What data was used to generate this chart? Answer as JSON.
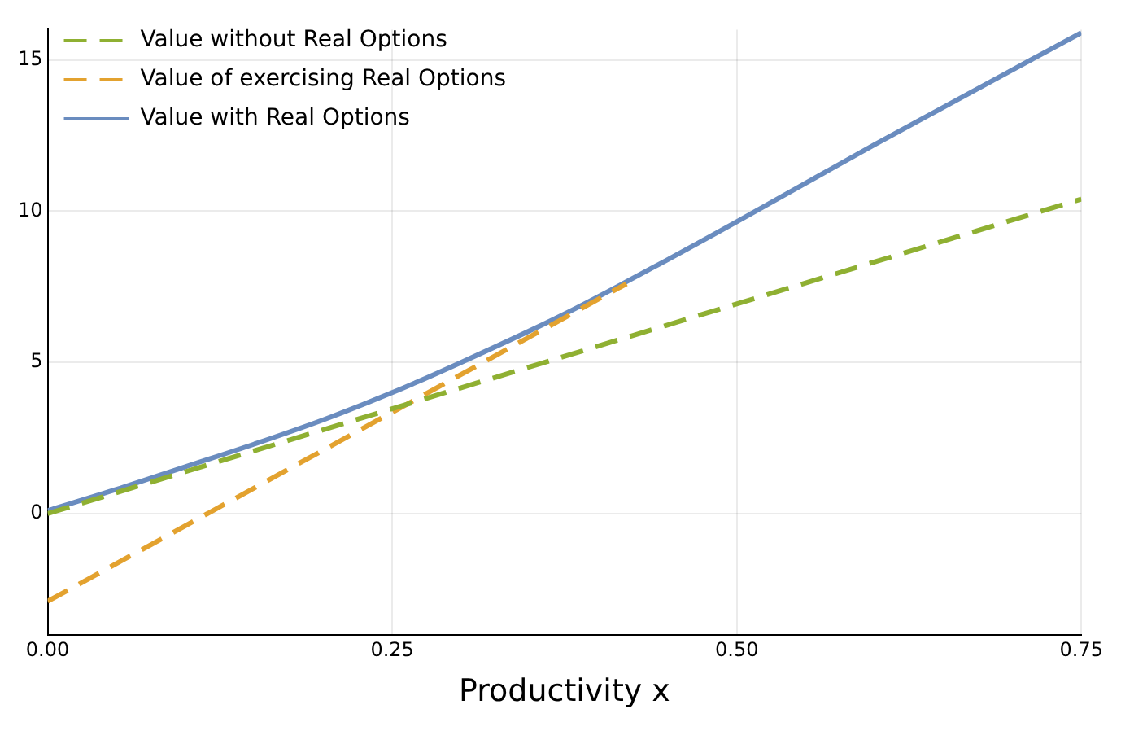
{
  "chart_data": {
    "type": "line",
    "xlabel": "Productivity x",
    "series": [
      {
        "name": "Value without Real Options",
        "color": "#8fb032",
        "line_style": "dashed",
        "x": [
          0,
          0.75
        ],
        "values": [
          0,
          10.4
        ]
      },
      {
        "name": "Value of exercising Real Options",
        "color": "#e3a22f",
        "line_style": "dashed",
        "x": [
          0,
          0.42
        ],
        "values": [
          -2.9,
          7.6
        ]
      },
      {
        "name": "Value with Real Options",
        "color": "#6a8cbf",
        "line_style": "solid",
        "x": [
          0,
          0.05,
          0.1,
          0.15,
          0.2,
          0.25,
          0.3,
          0.375,
          0.45,
          0.5,
          0.6,
          0.75
        ],
        "values": [
          0.1,
          0.8,
          1.55,
          2.3,
          3.1,
          4.0,
          5.0,
          6.6,
          8.4,
          9.65,
          12.2,
          15.9
        ]
      }
    ],
    "xlim": [
      0,
      0.75
    ],
    "xticks": [
      {
        "value": 0,
        "label": "0.00"
      },
      {
        "value": 0.25,
        "label": "0.25"
      },
      {
        "value": 0.5,
        "label": "0.50"
      },
      {
        "value": 0.75,
        "label": "0.75"
      }
    ],
    "ylim": [
      -4,
      16
    ],
    "yticks": [
      0,
      5,
      10,
      15
    ],
    "grid": true,
    "legend": "top left",
    "marker": "none"
  }
}
